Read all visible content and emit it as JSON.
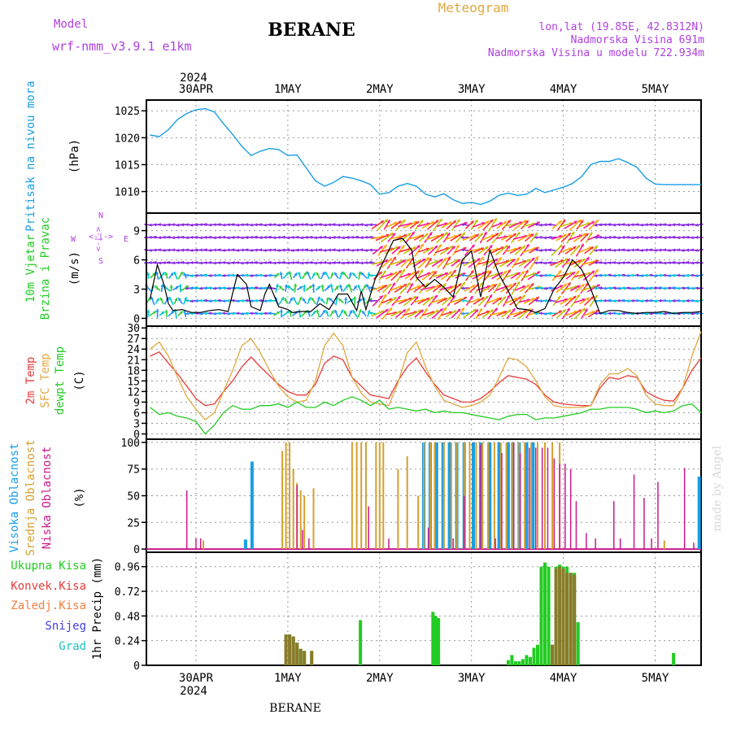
{
  "header": {
    "model_label": "Model",
    "model_name": "wrf-nmm_v3.9.1 e1km",
    "title": "BERANE",
    "product": "Meteogram",
    "lonlat": "lon,lat (19.85E, 42.8312N)",
    "elev": "Nadmorska Visina 691m",
    "elev_model": "Nadmorska Visina u modelu 722.934m",
    "footer": "BERANE",
    "credit": "made by Angel"
  },
  "colors": {
    "pressure": "#1a9ee6",
    "t2m": "#e63c3c",
    "sfc": "#e0a840",
    "dew": "#22cc22",
    "wind_speed": "#000000",
    "gust": "#e63c3c",
    "high": "#1a9ee6",
    "mid": "#d4a030",
    "low": "#cc1a8c",
    "conv": "#e63c3c",
    "frozen": "#f08040",
    "snow": "#4040e0",
    "hail": "#20c0c0",
    "total": "#22cc22",
    "model": "#b040e0"
  },
  "dates": {
    "top_year": "2024",
    "top_first": "30APR",
    "labels": [
      "30APR",
      "1MAY",
      "2MAY",
      "3MAY",
      "4MAY",
      "5MAY"
    ],
    "bottom_first": "30APR",
    "bottom_year": "2024",
    "day_positions": [
      0.5,
      1.5,
      2.5,
      3.5,
      4.5,
      5.5
    ],
    "x_range_days": [
      -0.04,
      6.0
    ]
  },
  "chart_data": [
    {
      "type": "line",
      "name": "pressure",
      "ylabel1": "Pritisak na nivou mora",
      "ylabel2": "(hPa)",
      "ylim": [
        1006,
        1027
      ],
      "yticks": [
        1010,
        1015,
        1020,
        1025
      ],
      "grid": true,
      "series": [
        {
          "x": [
            0,
            0.1,
            0.2,
            0.3,
            0.4,
            0.5,
            0.6,
            0.7,
            0.8,
            0.9,
            1.0,
            1.1,
            1.2,
            1.3,
            1.4,
            1.5,
            1.6,
            1.7,
            1.8,
            1.9,
            2.0,
            2.1,
            2.2,
            2.3,
            2.4,
            2.5,
            2.6,
            2.7,
            2.8,
            2.9,
            3.0,
            3.1,
            3.2,
            3.3,
            3.4,
            3.5,
            3.6,
            3.7,
            3.8,
            3.9,
            4.0,
            4.1,
            4.2,
            4.3,
            4.4,
            4.5,
            4.6,
            4.7,
            4.8,
            4.9,
            5.0,
            5.1,
            5.2,
            5.3,
            5.4,
            5.5,
            5.6,
            5.7,
            5.8,
            5.9,
            6.0
          ],
          "values": [
            1020.5,
            1020.2,
            1021.5,
            1023.4,
            1024.5,
            1025.2,
            1025.4,
            1024.8,
            1022.6,
            1020.6,
            1018.4,
            1016.7,
            1017.5,
            1018.0,
            1017.8,
            1016.7,
            1016.8,
            1014.4,
            1012.0,
            1011.0,
            1011.7,
            1012.8,
            1012.5,
            1012.0,
            1011.3,
            1009.5,
            1009.8,
            1011.0,
            1011.5,
            1011.0,
            1009.5,
            1009.0,
            1009.6,
            1008.5,
            1007.8,
            1008.0,
            1007.6,
            1008.2,
            1009.3,
            1009.7,
            1009.3,
            1009.5,
            1010.6,
            1009.8,
            1010.3,
            1010.8,
            1011.5,
            1012.8,
            1015.0,
            1015.6,
            1015.6,
            1016.1,
            1015.4,
            1014.5,
            1012.5,
            1011.4,
            1011.3,
            1011.3,
            1011.3,
            1011.3,
            1011.3
          ]
        }
      ]
    },
    {
      "type": "line",
      "name": "wind",
      "ylabel1": "10m Vjetar",
      "ylabel1b": "Brzina i Pravac",
      "ylabel2": "(m/s)",
      "compass": {
        "n": "N",
        "s": "S",
        "e": "E",
        "w": "W",
        "arrows": "<-|->"
      },
      "ylim": [
        -0.8,
        10.8
      ],
      "yticks": [
        0,
        3,
        6,
        9
      ],
      "grid": true,
      "speed": {
        "x": [
          0,
          0.08,
          0.15,
          0.2,
          0.25,
          0.35,
          0.45,
          0.55,
          0.65,
          0.75,
          0.85,
          0.95,
          1.05,
          1.1,
          1.2,
          1.25,
          1.3,
          1.4,
          1.5,
          1.55,
          1.65,
          1.75,
          1.85,
          1.95,
          2.05,
          2.15,
          2.25,
          2.3,
          2.35,
          2.45,
          2.55,
          2.65,
          2.75,
          2.85,
          2.9,
          3.0,
          3.1,
          3.2,
          3.3,
          3.4,
          3.5,
          3.6,
          3.7,
          3.8,
          3.9,
          4.0,
          4.1,
          4.2,
          4.3,
          4.4,
          4.5,
          4.6,
          4.7,
          4.8,
          4.9,
          5.0,
          5.1,
          5.2,
          5.3,
          5.4,
          5.5,
          5.6,
          5.7,
          5.8,
          5.9,
          6.0
        ],
        "values": [
          2.0,
          5.5,
          3.5,
          1.5,
          0.8,
          0.9,
          0.6,
          0.6,
          0.8,
          0.9,
          0.7,
          4.5,
          3.5,
          1.2,
          0.8,
          2.5,
          3.5,
          1.2,
          0.9,
          0.6,
          0.7,
          0.7,
          1.5,
          0.9,
          2.5,
          2.5,
          0.8,
          2.8,
          0.9,
          4.0,
          6.0,
          8.0,
          8.2,
          7.0,
          4.2,
          3.2,
          4.0,
          3.2,
          2.2,
          6.0,
          6.9,
          2.2,
          7.0,
          4.5,
          2.8,
          1.0,
          0.9,
          0.6,
          1.0,
          3.0,
          4.2,
          6.0,
          5.0,
          3.0,
          0.5,
          0.8,
          0.8,
          0.6,
          0.5,
          0.6,
          0.6,
          0.7,
          0.5,
          0.6,
          0.6,
          0.7
        ]
      }
    },
    {
      "type": "line",
      "name": "temperature",
      "ylabel1": "2m Temp",
      "ylabel1b": "SFC Temp",
      "ylabel1c": "dewpt Temp",
      "ylabel2": "(C)",
      "ylim": [
        -1.5,
        30.5
      ],
      "yticks": [
        0,
        3,
        6,
        9,
        12,
        15,
        18,
        21,
        24,
        27,
        30
      ],
      "grid": true,
      "series": [
        {
          "name": "2m Temp",
          "x": [
            0,
            0.1,
            0.2,
            0.3,
            0.4,
            0.5,
            0.6,
            0.7,
            0.8,
            0.9,
            1.0,
            1.1,
            1.2,
            1.3,
            1.4,
            1.5,
            1.6,
            1.7,
            1.8,
            1.9,
            2.0,
            2.1,
            2.2,
            2.3,
            2.4,
            2.5,
            2.6,
            2.7,
            2.8,
            2.9,
            3.0,
            3.1,
            3.2,
            3.3,
            3.4,
            3.5,
            3.6,
            3.7,
            3.8,
            3.9,
            4.0,
            4.1,
            4.2,
            4.3,
            4.4,
            4.5,
            4.6,
            4.7,
            4.8,
            4.9,
            5.0,
            5.1,
            5.2,
            5.3,
            5.4,
            5.5,
            5.6,
            5.7,
            5.8,
            5.9,
            6.0
          ],
          "values": [
            22,
            23.2,
            20.0,
            17.0,
            13.5,
            10.0,
            8.0,
            8.5,
            12.0,
            15.0,
            19.0,
            21.8,
            19.0,
            16.5,
            14.0,
            12.0,
            11.0,
            11.0,
            14.0,
            20.0,
            22.0,
            21.0,
            16.0,
            13.5,
            11.0,
            10.5,
            10.0,
            15.0,
            19.0,
            21.5,
            17.5,
            14.0,
            11.0,
            10.0,
            9.0,
            9.0,
            10.0,
            12.0,
            14.5,
            16.5,
            16.0,
            15.5,
            14.0,
            11.0,
            9.0,
            8.5,
            8.2,
            8.0,
            8.0,
            13.0,
            16.0,
            15.5,
            16.5,
            16.0,
            12.0,
            10.5,
            9.5,
            9.3,
            13.0,
            18.0,
            21.5
          ]
        },
        {
          "name": "SFC Temp",
          "x": [
            0,
            0.1,
            0.2,
            0.3,
            0.4,
            0.5,
            0.6,
            0.7,
            0.8,
            0.9,
            1.0,
            1.1,
            1.2,
            1.3,
            1.4,
            1.5,
            1.6,
            1.7,
            1.8,
            1.9,
            2.0,
            2.1,
            2.2,
            2.3,
            2.4,
            2.5,
            2.6,
            2.7,
            2.8,
            2.9,
            3.0,
            3.1,
            3.2,
            3.3,
            3.4,
            3.5,
            3.6,
            3.7,
            3.8,
            3.9,
            4.0,
            4.1,
            4.2,
            4.3,
            4.4,
            4.5,
            4.6,
            4.7,
            4.8,
            4.9,
            5.0,
            5.1,
            5.2,
            5.3,
            5.4,
            5.5,
            5.6,
            5.7,
            5.8,
            5.9,
            6.0
          ],
          "values": [
            24,
            26.0,
            22.0,
            16.0,
            10.5,
            7.0,
            4.0,
            6.0,
            12.0,
            18.0,
            25.0,
            27.0,
            23.0,
            18.0,
            13.5,
            10.5,
            9.0,
            9.5,
            15.0,
            25.0,
            28.5,
            25.0,
            16.0,
            11.5,
            9.0,
            8.5,
            8.0,
            14.5,
            23.0,
            26.0,
            19.0,
            13.5,
            9.5,
            8.5,
            7.5,
            8.0,
            9.0,
            11.0,
            16.0,
            21.5,
            21.0,
            19.0,
            15.0,
            10.5,
            8.0,
            7.5,
            7.5,
            7.5,
            8.0,
            14.0,
            17.0,
            17.0,
            18.5,
            16.5,
            11.0,
            8.5,
            8.0,
            8.0,
            13.0,
            22.0,
            29.0
          ]
        },
        {
          "name": "dewpt Temp",
          "x": [
            0,
            0.1,
            0.2,
            0.3,
            0.4,
            0.5,
            0.6,
            0.7,
            0.8,
            0.9,
            1.0,
            1.1,
            1.2,
            1.3,
            1.4,
            1.5,
            1.6,
            1.7,
            1.8,
            1.9,
            2.0,
            2.1,
            2.2,
            2.3,
            2.4,
            2.5,
            2.6,
            2.7,
            2.8,
            2.9,
            3.0,
            3.1,
            3.2,
            3.3,
            3.4,
            3.5,
            3.6,
            3.7,
            3.8,
            3.9,
            4.0,
            4.1,
            4.2,
            4.3,
            4.4,
            4.5,
            4.6,
            4.7,
            4.8,
            4.9,
            5.0,
            5.1,
            5.2,
            5.3,
            5.4,
            5.5,
            5.6,
            5.7,
            5.8,
            5.9,
            6.0
          ],
          "values": [
            7.5,
            5.5,
            6.0,
            5.0,
            4.5,
            3.5,
            0.0,
            2.5,
            6.0,
            8.0,
            7.0,
            7.0,
            8.0,
            8.0,
            8.5,
            7.5,
            9.0,
            7.5,
            7.5,
            9.0,
            8.0,
            9.5,
            10.5,
            9.5,
            8.0,
            9.5,
            7.0,
            7.5,
            7.0,
            6.5,
            7.0,
            6.0,
            6.5,
            6.0,
            6.0,
            5.5,
            5.0,
            4.5,
            4.0,
            5.0,
            5.5,
            5.5,
            4.0,
            4.5,
            4.5,
            5.0,
            5.5,
            6.0,
            7.0,
            7.0,
            7.5,
            7.5,
            7.5,
            7.0,
            6.0,
            6.5,
            6.0,
            6.5,
            8.0,
            8.5,
            6.0
          ]
        }
      ]
    },
    {
      "type": "bar",
      "name": "clouds",
      "ylabel1": "Visoka Oblacnost",
      "ylabel1b": "Srednja Oblacnost",
      "ylabel1c": "Niska Oblacnost",
      "ylabel2": "(%)",
      "ylim": [
        -3,
        103
      ],
      "yticks": [
        0,
        25,
        50,
        75,
        100
      ],
      "grid": true,
      "series": [
        {
          "name": "Visoka Oblacnost",
          "x": [
            1.04,
            1.11,
            2.98,
            3.05,
            3.12,
            3.19,
            3.26,
            3.34,
            3.42,
            3.52,
            3.6,
            3.7,
            3.8,
            3.9,
            3.95,
            4.02,
            4.1,
            4.17,
            5.98
          ],
          "values": [
            9,
            82,
            100,
            100,
            100,
            100,
            100,
            100,
            100,
            100,
            100,
            100,
            100,
            100,
            100,
            100,
            100,
            100,
            68
          ]
        },
        {
          "name": "Srednja Oblacnost",
          "x": [
            0.58,
            1.44,
            1.48,
            1.52,
            1.56,
            1.6,
            1.64,
            1.68,
            1.78,
            2.2,
            2.25,
            2.3,
            2.35,
            2.46,
            2.5,
            2.54,
            2.7,
            2.8,
            2.92,
            2.98,
            3.05,
            3.1,
            3.2,
            3.28,
            3.34,
            3.42,
            3.48,
            3.55,
            3.62,
            3.68,
            3.75,
            3.82,
            3.88,
            3.95,
            4.02,
            4.08,
            4.15,
            4.22,
            4.3,
            4.38,
            4.46,
            5.6
          ],
          "values": [
            8,
            92,
            100,
            100,
            75,
            62,
            55,
            50,
            57,
            100,
            100,
            100,
            100,
            100,
            100,
            100,
            75,
            87,
            50,
            100,
            100,
            100,
            100,
            100,
            100,
            100,
            100,
            100,
            100,
            100,
            100,
            100,
            100,
            100,
            100,
            100,
            100,
            100,
            100,
            100,
            100,
            8
          ]
        },
        {
          "name": "Niska Oblacnost",
          "x": [
            0.4,
            0.5,
            0.55,
            1.6,
            1.66,
            1.73,
            2.38,
            2.6,
            3.03,
            3.3,
            3.42,
            3.6,
            3.76,
            3.83,
            3.96,
            4.03,
            4.13,
            4.2,
            4.27,
            4.33,
            4.4,
            4.46,
            4.52,
            4.58,
            4.64,
            4.75,
            4.85,
            5.05,
            5.12,
            5.27,
            5.38,
            5.46,
            5.53,
            5.82,
            5.92
          ],
          "values": [
            55,
            10,
            10,
            60,
            18,
            10,
            40,
            10,
            20,
            10,
            50,
            98,
            10,
            90,
            100,
            90,
            95,
            95,
            95,
            95,
            85,
            80,
            80,
            75,
            45,
            15,
            10,
            45,
            10,
            70,
            48,
            10,
            63,
            76,
            6
          ]
        }
      ]
    },
    {
      "type": "bar",
      "name": "precip",
      "ylabel2": "1hr Precip (mm)",
      "legend": [
        "Ukupna Kisa",
        "Konvek.Kisa",
        "Zaledj.Kisa",
        "Snijeg",
        "Grad"
      ],
      "ylim": [
        0,
        1.1
      ],
      "yticks": [
        0,
        0.24,
        0.48,
        0.72,
        0.96
      ],
      "ytick_labels": [
        "0",
        "0.24",
        "0.48",
        "0.72",
        "0.96"
      ],
      "grid": true,
      "series": [
        {
          "name": "Ukupna Kisa",
          "x": [
            1.48,
            1.52,
            1.56,
            1.6,
            1.64,
            1.68,
            1.76,
            2.29,
            3.08,
            3.11,
            3.14,
            3.9,
            3.94,
            3.98,
            4.02,
            4.06,
            4.1,
            4.14,
            4.18,
            4.22,
            4.26,
            4.3,
            4.34,
            4.38,
            4.42,
            4.46,
            4.5,
            4.54,
            4.58,
            4.62,
            4.66,
            5.7
          ],
          "values": [
            0.3,
            0.3,
            0.28,
            0.22,
            0.16,
            0.14,
            0.14,
            0.44,
            0.52,
            0.48,
            0.46,
            0.05,
            0.1,
            0.04,
            0.04,
            0.06,
            0.1,
            0.08,
            0.17,
            0.2,
            0.96,
            1.0,
            0.96,
            0.2,
            0.96,
            0.98,
            0.96,
            0.96,
            0.9,
            0.9,
            0.42,
            0.12
          ]
        },
        {
          "name": "Konvek.Kisa",
          "x": [
            1.48,
            1.52,
            1.56,
            1.6,
            1.64,
            1.68,
            1.76,
            4.38,
            4.42,
            4.46,
            4.5,
            4.54,
            4.58,
            4.62
          ],
          "values": [
            0.3,
            0.3,
            0.28,
            0.22,
            0.16,
            0.14,
            0.14,
            0.2,
            0.94,
            0.96,
            0.94,
            0.9,
            0.9,
            0.88
          ]
        }
      ]
    }
  ]
}
